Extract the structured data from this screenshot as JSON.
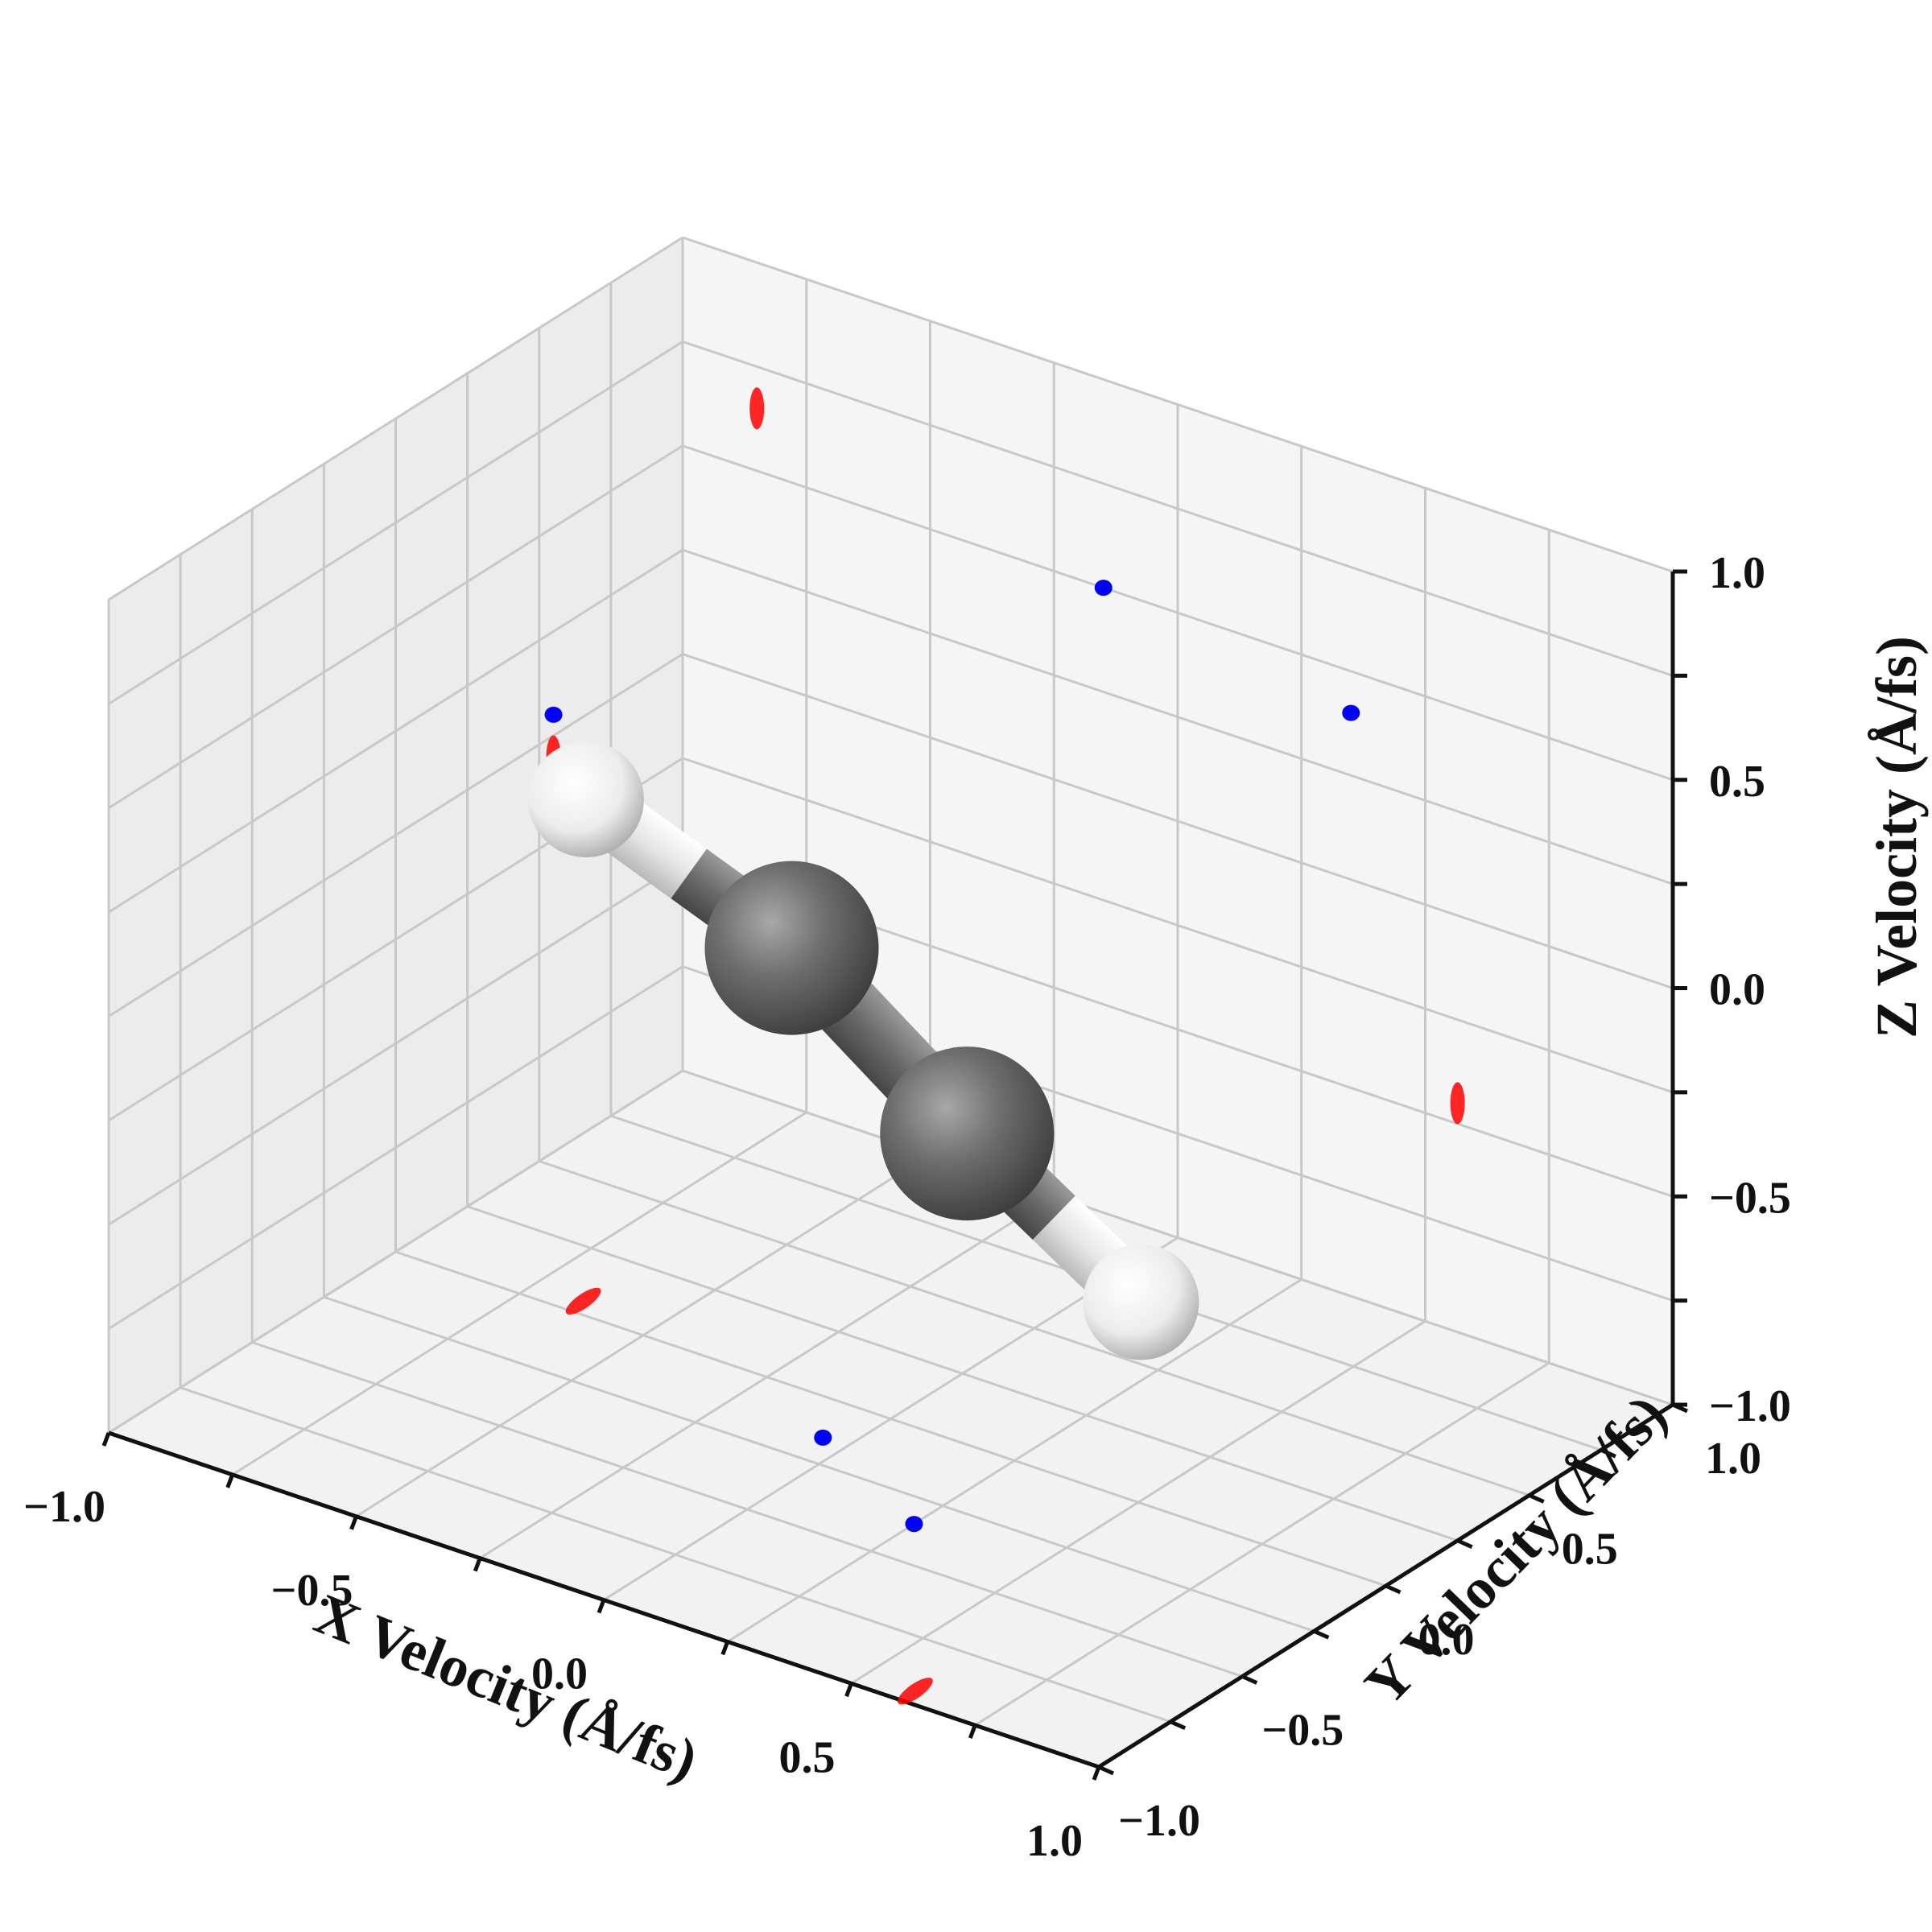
{
  "chart_data": {
    "type": "scatter",
    "projection": "3d",
    "title": "",
    "xlabel": "X Velocity (Å/fs)",
    "ylabel": "Y Velocity (Å/fs)",
    "zlabel": "Z Velocity (Å/fs)",
    "xlim": [
      -1.0,
      1.0
    ],
    "ylim": [
      -1.0,
      1.0
    ],
    "zlim": [
      -1.0,
      1.0
    ],
    "x_ticks": [
      "−1.0",
      "−0.5",
      "0.0",
      "0.5",
      "1.0"
    ],
    "y_ticks": [
      "−1.0",
      "−0.5",
      "0.0",
      "0.5",
      "1.0"
    ],
    "z_ticks": [
      "−1.0",
      "−0.5",
      "0.0",
      "0.5",
      "1.0"
    ],
    "grid": true,
    "colors": {
      "hydrogen_projection": "#ff0000",
      "carbon_projection": "#0000ff",
      "carbon_atom": "#6e6e6e",
      "hydrogen_atom": "#f2f2f2"
    },
    "series": [
      {
        "color": "#ff0000",
        "points": [
          {
            "x": -0.85,
            "y": 1.0,
            "z": 0.65
          },
          {
            "x": 1.0,
            "y": 0.25,
            "z": 0.05
          },
          {
            "x": -1.0,
            "y": 0.55,
            "z": -0.05
          },
          {
            "x": -0.65,
            "y": 0.05,
            "z": -1.0
          },
          {
            "x": 0.6,
            "y": -0.95,
            "z": -1.0
          }
        ]
      },
      {
        "color": "#0000ff",
        "points": [
          {
            "x": -0.15,
            "y": 1.0,
            "z": 0.5
          },
          {
            "x": 0.35,
            "y": 1.0,
            "z": 0.4
          },
          {
            "x": -1.0,
            "y": 0.55,
            "z": 0.05
          },
          {
            "x": -0.05,
            "y": -0.15,
            "z": -1.0
          },
          {
            "x": 0.25,
            "y": -0.35,
            "z": -1.0
          }
        ]
      }
    ],
    "molecule": {
      "atoms": [
        {
          "element": "H",
          "x": -0.72,
          "y": 0.18,
          "z": 0.12
        },
        {
          "element": "C",
          "x": -0.2,
          "y": 0.0,
          "z": 0.05
        },
        {
          "element": "C",
          "x": 0.27,
          "y": -0.2,
          "z": -0.12
        },
        {
          "element": "H",
          "x": 0.72,
          "y": -0.37,
          "z": -0.27
        }
      ]
    }
  }
}
